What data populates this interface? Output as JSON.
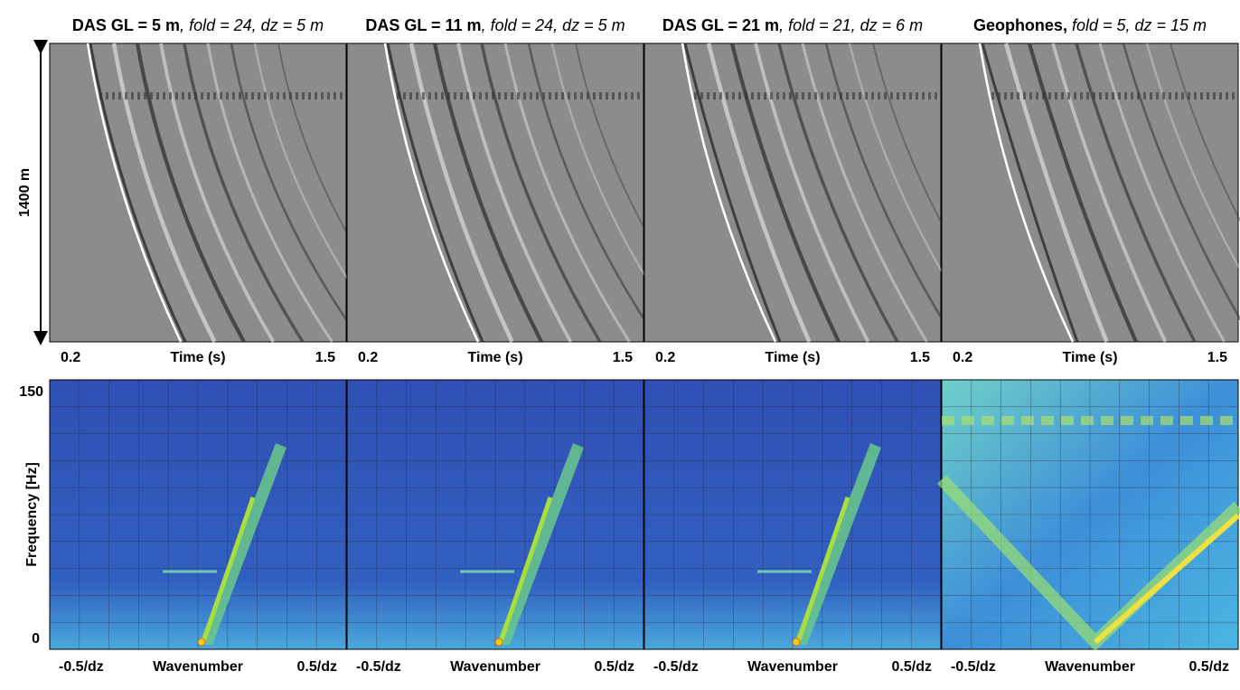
{
  "panels": [
    {
      "title_bold": "DAS GL = 5 m",
      "title_italic": ", fold = 24, dz = 5 m"
    },
    {
      "title_bold": "DAS GL = 11 m",
      "title_italic": ", fold = 24, dz = 5 m"
    },
    {
      "title_bold": "DAS GL = 21 m",
      "title_italic": ", fold = 21, dz = 6 m"
    },
    {
      "title_bold": "Geophones,",
      "title_italic": " fold = 5, dz = 15 m"
    }
  ],
  "top_axis": {
    "x_min": "0.2",
    "x_label": "Time (s)",
    "x_max": "1.5",
    "y_label": "1400 m"
  },
  "bottom_axis": {
    "x_min": "-0.5/dz",
    "x_label": "Wavenumber",
    "x_max": "0.5/dz",
    "y_label": "Frequency [Hz]",
    "y_max": "150",
    "y_min": "0"
  }
}
